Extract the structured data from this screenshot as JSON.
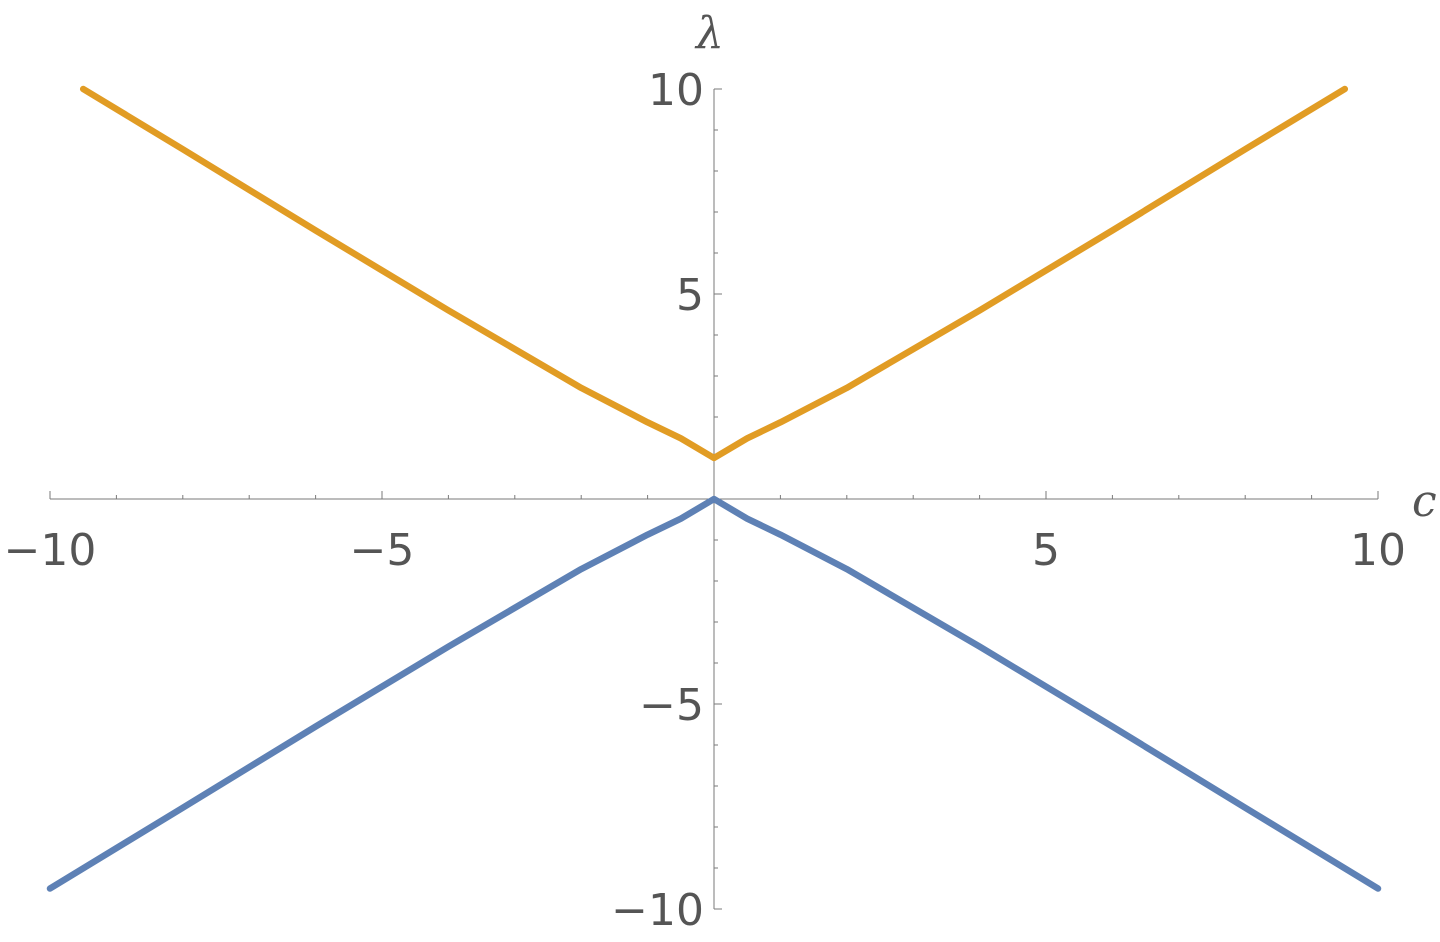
{
  "chart_data": {
    "type": "line",
    "xlabel": "c",
    "ylabel": "λ",
    "xlim": [
      -10,
      10
    ],
    "ylim": [
      -10,
      10
    ],
    "x_ticks": [
      {
        "value": -10,
        "label": "−10"
      },
      {
        "value": -5,
        "label": "−5"
      },
      {
        "value": 5,
        "label": "5"
      },
      {
        "value": 10,
        "label": "10"
      }
    ],
    "y_ticks": [
      {
        "value": 10,
        "label": "10"
      },
      {
        "value": 5,
        "label": "5"
      },
      {
        "value": -5,
        "label": "−5"
      },
      {
        "value": -10,
        "label": "−10"
      }
    ],
    "grid": false,
    "legend": "none",
    "series": [
      {
        "color": "#E19C24",
        "x": [
          -9.5,
          -8,
          -6,
          -4,
          -2,
          -1,
          -0.5,
          0,
          0.5,
          1,
          2,
          4,
          6,
          8,
          9.5
        ],
        "y": [
          10,
          8.53,
          6.55,
          4.6,
          2.71,
          1.87,
          1.48,
          1,
          1.48,
          1.87,
          2.71,
          4.6,
          6.55,
          8.53,
          10
        ]
      },
      {
        "color": "#5E81B5",
        "x": [
          -10,
          -8,
          -6,
          -4,
          -2,
          -1,
          -0.5,
          0,
          0.5,
          1,
          2,
          4,
          6,
          8,
          10
        ],
        "y": [
          -9.5,
          -7.53,
          -5.55,
          -3.6,
          -1.71,
          -0.87,
          -0.48,
          0,
          -0.48,
          -0.87,
          -1.71,
          -3.6,
          -5.55,
          -7.53,
          -9.5
        ]
      }
    ]
  }
}
